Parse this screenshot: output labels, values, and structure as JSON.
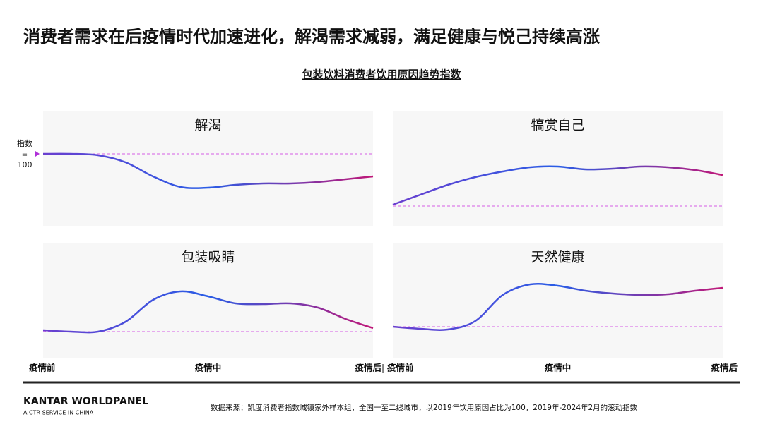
{
  "title": "消费者需求在后疫情时代加速进化，解渴需求减弱，满足健康与悦己持续高涨",
  "subtitle": "包装饮料消费者饮用原因趋势指数",
  "index_marker": {
    "name": "指数",
    "eq": "=",
    "value": 100
  },
  "line_gradient": [
    "#6a3fcf",
    "#2a5de6",
    "#c01878"
  ],
  "baseline_color": "#d65ce6",
  "chart_data": [
    {
      "type": "line",
      "title": "解渴",
      "baseline": 100,
      "ylim": [
        79.6,
        112.2
      ],
      "xlim": [
        0,
        12
      ],
      "x": [
        0,
        1,
        2,
        3,
        4,
        5,
        6,
        7,
        8,
        9,
        10,
        11,
        12
      ],
      "values": [
        100,
        100,
        99.6,
        97.6,
        93.6,
        90.6,
        90.4,
        91.2,
        91.6,
        91.6,
        92,
        92.8,
        93.6
      ]
    },
    {
      "type": "line",
      "title": "犒赏自己",
      "baseline": 100,
      "ylim": [
        94.4,
        127
      ],
      "xlim": [
        0,
        12
      ],
      "x": [
        0,
        1,
        2,
        3,
        4,
        5,
        6,
        7,
        8,
        9,
        10,
        11,
        12
      ],
      "values": [
        100.4,
        103.2,
        106,
        108.2,
        109.8,
        111,
        111.2,
        110.4,
        110.6,
        111.2,
        111,
        110.2,
        108.8
      ]
    },
    {
      "type": "line",
      "title": "包装吸睛",
      "baseline": 100,
      "ylim": [
        92.6,
        125
      ],
      "xlim": [
        0,
        12
      ],
      "x": [
        0,
        1,
        2,
        3,
        4,
        5,
        6,
        7,
        8,
        9,
        10,
        11,
        12
      ],
      "values": [
        100.4,
        100,
        100,
        102.8,
        109,
        111.4,
        110,
        108,
        107.8,
        108,
        106.8,
        103.6,
        101
      ],
      "xticks": [
        {
          "value": 0,
          "label": "疫情前"
        },
        {
          "value": 6,
          "label": "疫情中"
        },
        {
          "value": 12,
          "label": "疫情后"
        }
      ]
    },
    {
      "type": "line",
      "title": "天然健康",
      "baseline": 100,
      "ylim": [
        91.2,
        123.6
      ],
      "xlim": [
        0,
        12
      ],
      "x": [
        0,
        1,
        2,
        3,
        4,
        5,
        6,
        7,
        8,
        9,
        10,
        11,
        12
      ],
      "values": [
        100,
        99.4,
        99.2,
        101.6,
        109,
        112,
        111.6,
        110.2,
        109.4,
        109,
        109.2,
        110.2,
        111
      ],
      "xticks": [
        {
          "value": 0,
          "label": "疫情前"
        },
        {
          "value": 6,
          "label": "疫情中"
        },
        {
          "value": 12,
          "label": "疫情后"
        }
      ]
    }
  ],
  "footer": {
    "brand": "KANTAR WORLDPANEL",
    "tagline": "A CTR SERVICE IN CHINA",
    "source": "数据来源：凯度消费者指数城镇家外样本组，全国一至二线城市，以2019年饮用原因占比为100，2019年-2024年2月的滚动指数"
  }
}
